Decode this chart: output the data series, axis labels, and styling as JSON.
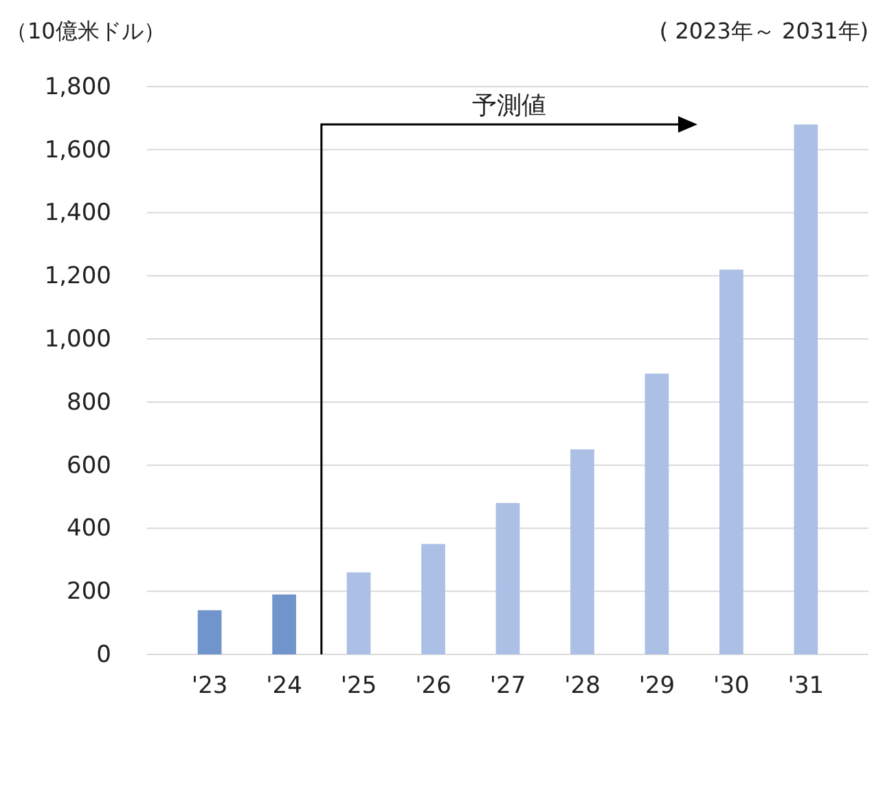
{
  "chart_data": {
    "type": "bar",
    "ylabel": "（10億米ドル）",
    "subtitle": "( 2023年～ 2031年)",
    "annotations": [
      "予測値"
    ],
    "categories": [
      "'23",
      "'24",
      "'25",
      "'26",
      "'27",
      "'28",
      "'29",
      "'30",
      "'31"
    ],
    "values": [
      140,
      190,
      260,
      350,
      480,
      650,
      890,
      1220,
      1680
    ],
    "colors": [
      "#7094cc",
      "#7094cc",
      "#abc0e4",
      "#abc0e4",
      "#abc0e4",
      "#abc0e4",
      "#abc0e4",
      "#abc0e4",
      "#abc0e4"
    ],
    "ylim": [
      0,
      1800
    ],
    "yticks": [
      0,
      200,
      400,
      600,
      800,
      {
        "value": 1000,
        "label": "1,000"
      },
      {
        "value": 1200,
        "label": "1,200"
      },
      {
        "value": 1400,
        "label": "1,400"
      },
      {
        "value": 1600,
        "label": "1,600"
      },
      {
        "value": 1800,
        "label": "1,800"
      }
    ],
    "grid": "y"
  }
}
